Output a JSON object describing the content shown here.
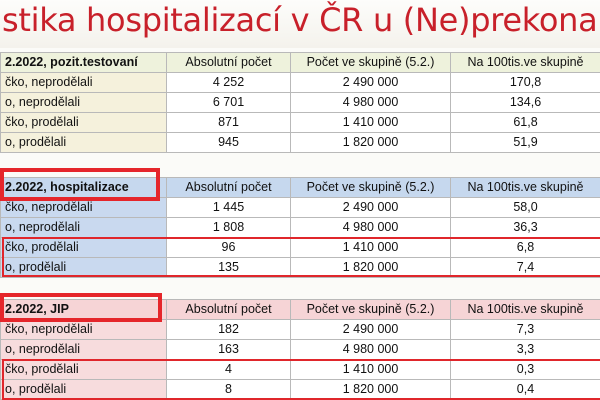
{
  "title": "stika hospitalizací v ČR u (Ne)prekonan",
  "colors": {
    "title": "#c8202a",
    "highlight": "#e5262b"
  },
  "sections": [
    {
      "header": "2.2022, pozit.testovaní",
      "columns": [
        "Absolutní počet",
        "Počet ve skupině (5.2.)",
        "Na 100tis.ve skupině"
      ],
      "rows": [
        [
          "čko, neprodělali",
          "4 252",
          "2 490 000",
          "170,8"
        ],
        [
          "o, neprodělali",
          "6 701",
          "4 980 000",
          "134,6"
        ],
        [
          "čko, prodělali",
          "871",
          "1 410 000",
          "61,8"
        ],
        [
          "o, prodělali",
          "945",
          "1 820 000",
          "51,9"
        ]
      ]
    },
    {
      "header": "2.2022, hospitalizace",
      "columns": [
        "Absolutní počet",
        "Počet ve skupině (5.2.)",
        "Na 100tis.ve skupině"
      ],
      "rows": [
        [
          "čko, neprodělali",
          "1 445",
          "2 490 000",
          "58,0"
        ],
        [
          "o, neprodělali",
          "1 808",
          "4 980 000",
          "36,3"
        ],
        [
          "čko, prodělali",
          "96",
          "1 410 000",
          "6,8"
        ],
        [
          "o, prodělali",
          "135",
          "1 820 000",
          "7,4"
        ]
      ]
    },
    {
      "header": "2.2022, JIP",
      "columns": [
        "Absolutní počet",
        "Počet ve skupině (5.2.)",
        "Na 100tis.ve skupině"
      ],
      "rows": [
        [
          "čko, neprodělali",
          "182",
          "2 490 000",
          "7,3"
        ],
        [
          "o, neprodělali",
          "163",
          "4 980 000",
          "3,3"
        ],
        [
          "čko, prodělali",
          "4",
          "1 410 000",
          "0,3"
        ],
        [
          "o, prodělali",
          "8",
          "1 820 000",
          "0,4"
        ]
      ]
    }
  ]
}
